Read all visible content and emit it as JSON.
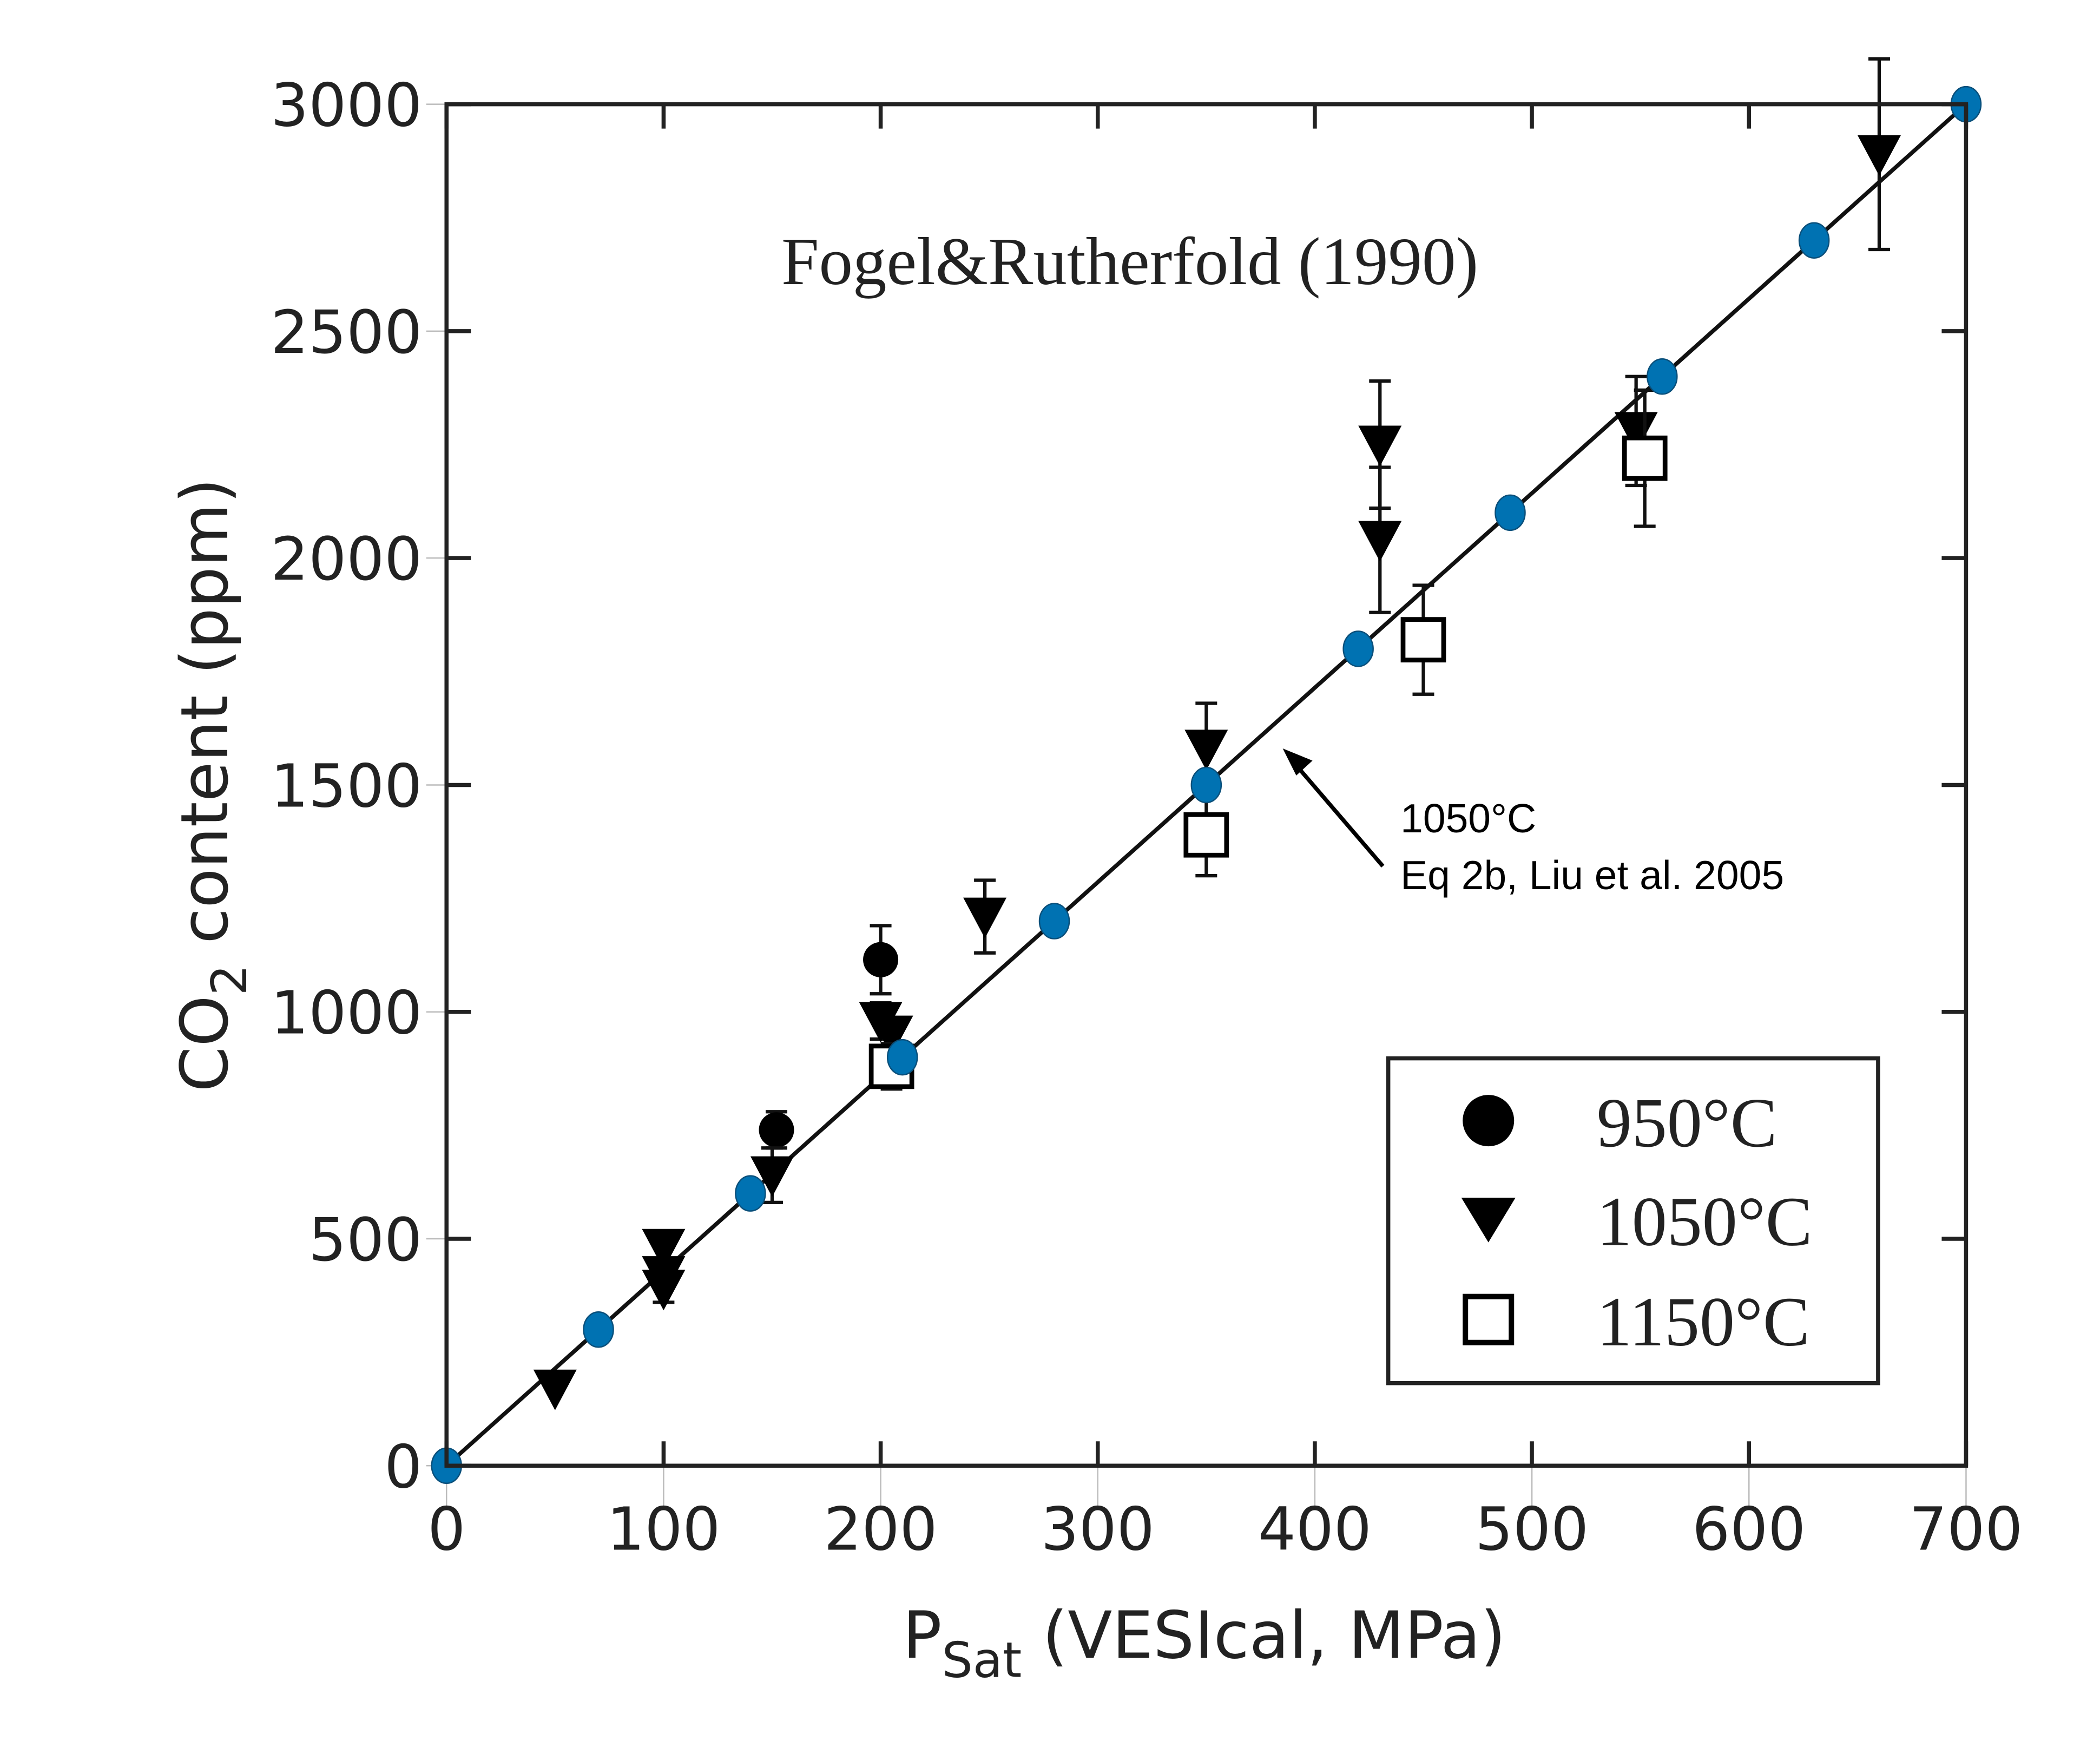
{
  "chart_data": {
    "type": "scatter",
    "title": "Fogel&Rutherfold (1990)",
    "xlabel_main": "P",
    "xlabel_sub": "Sat",
    "xlabel_rest": " (VESIcal, MPa)",
    "ylabel_pre": "CO",
    "ylabel_sub": "2",
    "ylabel_rest": " content (ppm)",
    "xlim": [
      0,
      700
    ],
    "ylim": [
      0,
      3000
    ],
    "xticks": [
      "0",
      "100",
      "200",
      "300",
      "400",
      "500",
      "600",
      "700"
    ],
    "yticks": [
      "0",
      "500",
      "1000",
      "1500",
      "2000",
      "2500",
      "3000"
    ],
    "annotation": {
      "line1": "1050°C",
      "line2": "Eq 2b, Liu et al. 2005",
      "points_to": [
        380,
        1600
      ]
    },
    "legend": {
      "position": "bottom-right",
      "entries": [
        "950°C",
        "1050°C",
        "1150°C"
      ]
    },
    "fit_line": {
      "name": "1050°C Eq 2b, Liu et al. 2005",
      "x": [
        0,
        700
      ],
      "y": [
        0,
        3000
      ]
    },
    "series": [
      {
        "name": "VESIcal",
        "marker": "circle",
        "color": "#0072b2",
        "x": [
          0,
          70,
          140,
          210,
          280,
          350,
          420,
          490,
          560,
          630,
          700
        ],
        "y": [
          0,
          300,
          600,
          900,
          1200,
          1500,
          1800,
          2100,
          2400,
          2700,
          3000
        ]
      },
      {
        "name": "950°C",
        "marker": "filled-circle",
        "color": "#000000",
        "x": [
          152,
          200
        ],
        "y": [
          740,
          1115
        ],
        "err": [
          40,
          75
        ]
      },
      {
        "name": "1050°C",
        "marker": "filled-triangle-down",
        "color": "#000000",
        "x": [
          50,
          100,
          100,
          100,
          150,
          200,
          205,
          248,
          350,
          430,
          430,
          548,
          660
        ],
        "y": [
          170,
          480,
          420,
          390,
          640,
          980,
          950,
          1210,
          1580,
          2250,
          2040,
          2280,
          2890
        ],
        "err": [
          0,
          0,
          0,
          30,
          60,
          40,
          0,
          80,
          100,
          140,
          160,
          120,
          210
        ]
      },
      {
        "name": "1150°C",
        "marker": "open-square",
        "color": "#000000",
        "x": [
          205,
          350,
          450,
          552
        ],
        "y": [
          880,
          1390,
          1820,
          2220
        ],
        "err": [
          50,
          90,
          120,
          150
        ]
      }
    ]
  }
}
